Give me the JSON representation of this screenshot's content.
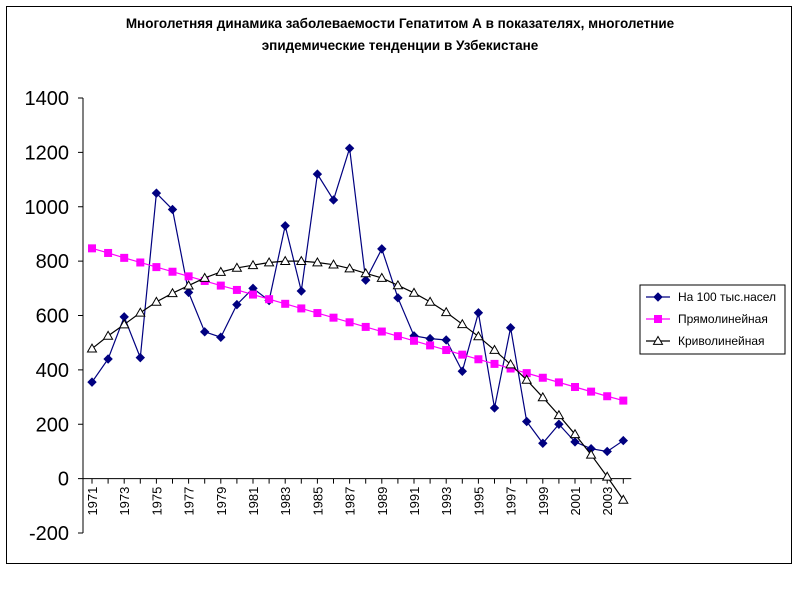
{
  "chart_data": {
    "type": "line",
    "title_lines": [
      "Многолетняя динамика заболеваемости Гепатитом А в показателях, многолетние",
      "эпидемические тенденции в Узбекистане"
    ],
    "xlabel": "",
    "ylabel": "",
    "ylim": [
      -200,
      1400
    ],
    "yticks": [
      -200,
      0,
      200,
      400,
      600,
      800,
      1000,
      1200,
      1400
    ],
    "x": [
      1971,
      1972,
      1973,
      1974,
      1975,
      1976,
      1977,
      1978,
      1979,
      1980,
      1981,
      1982,
      1983,
      1984,
      1985,
      1986,
      1987,
      1988,
      1989,
      1990,
      1991,
      1992,
      1993,
      1994,
      1995,
      1996,
      1997,
      1998,
      1999,
      2000,
      2001,
      2002,
      2003,
      2004
    ],
    "xtick_labels": [
      "1971",
      "1973",
      "1975",
      "1977",
      "1979",
      "1981",
      "1983",
      "1985",
      "1987",
      "1989",
      "1991",
      "1993",
      "1995",
      "1997",
      "1999",
      "2001",
      "2003"
    ],
    "grid": false,
    "legend_position": "right",
    "series": [
      {
        "name": "На 100 тыс.насел",
        "color": "#000080",
        "marker": "diamond",
        "values": [
          355,
          440,
          595,
          445,
          1050,
          990,
          685,
          540,
          520,
          640,
          700,
          655,
          930,
          690,
          1120,
          1025,
          1215,
          730,
          845,
          665,
          525,
          515,
          510,
          395,
          610,
          260,
          555,
          210,
          130,
          200,
          135,
          110,
          100,
          140
        ]
      },
      {
        "name": "Прямолинейная",
        "color": "#ff00ff",
        "marker": "square",
        "values": [
          847,
          830,
          812,
          795,
          778,
          761,
          744,
          727,
          710,
          694,
          677,
          660,
          643,
          626,
          609,
          592,
          575,
          558,
          541,
          524,
          507,
          490,
          473,
          456,
          439,
          422,
          405,
          388,
          371,
          354,
          337,
          320,
          303,
          287
        ]
      },
      {
        "name": "Криволинейная",
        "color": "#000000",
        "marker": "triangle",
        "values": [
          478,
          525,
          567,
          610,
          650,
          682,
          710,
          738,
          760,
          775,
          785,
          795,
          800,
          800,
          795,
          787,
          773,
          755,
          738,
          711,
          683,
          650,
          612,
          568,
          523,
          473,
          420,
          363,
          299,
          233,
          163,
          88,
          7,
          -78
        ]
      }
    ]
  }
}
